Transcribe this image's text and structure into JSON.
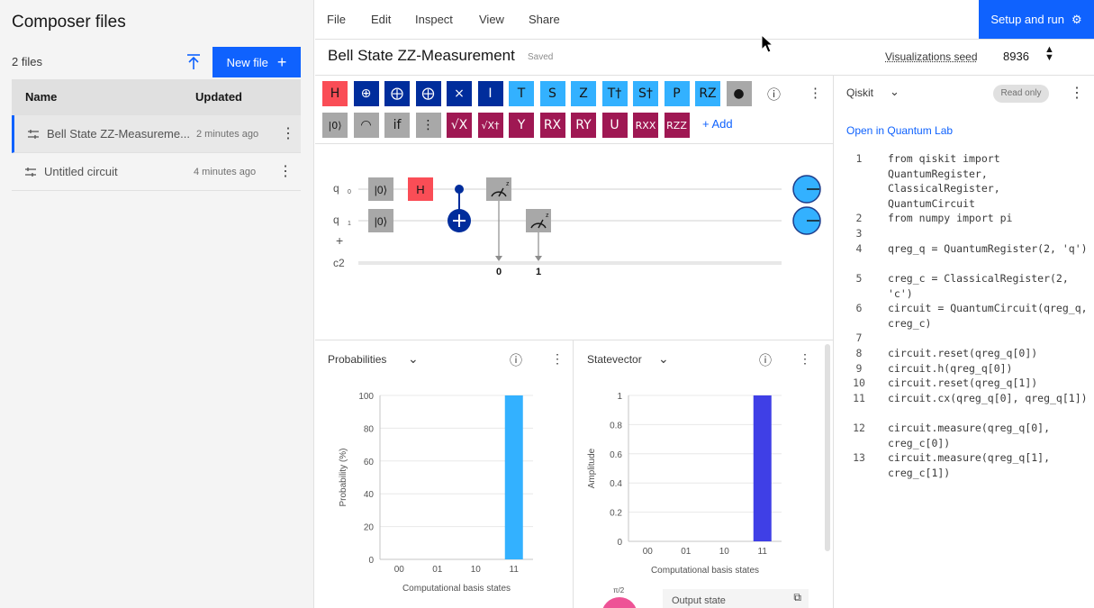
{
  "sidebar": {
    "title": "Composer files",
    "file_count": "2 files",
    "new_file_label": "New file",
    "columns": {
      "name": "Name",
      "updated": "Updated"
    },
    "files": [
      {
        "name": "Bell State ZZ-Measureme...",
        "updated": "2 minutes ago"
      },
      {
        "name": "Untitled circuit",
        "updated": "4 minutes ago"
      }
    ]
  },
  "menu": {
    "items": [
      "File",
      "Edit",
      "Inspect",
      "View",
      "Share"
    ],
    "run_label": "Setup and run"
  },
  "titlebar": {
    "circuit_name": "Bell State ZZ-Measurement",
    "save_status": "Saved",
    "seed_label": "Visualizations seed",
    "seed_value": "8936"
  },
  "palette": {
    "row1": [
      {
        "label": "H",
        "color": "#fa4d56"
      },
      {
        "label": "⊕",
        "color": "#002d9c"
      },
      {
        "label": "⨁",
        "color": "#002d9c"
      },
      {
        "label": "⨁",
        "color": "#002d9c"
      },
      {
        "label": "×",
        "color": "#002d9c"
      },
      {
        "label": "I",
        "color": "#002d9c"
      },
      {
        "label": "T",
        "color": "#33b1ff"
      },
      {
        "label": "S",
        "color": "#33b1ff"
      },
      {
        "label": "Z",
        "color": "#33b1ff"
      },
      {
        "label": "T†",
        "color": "#33b1ff"
      },
      {
        "label": "S†",
        "color": "#33b1ff"
      },
      {
        "label": "P",
        "color": "#33b1ff"
      },
      {
        "label": "RZ",
        "color": "#33b1ff"
      },
      {
        "label": "●",
        "color": "#a8a8a8"
      }
    ],
    "row2": [
      {
        "label": "|0⟩",
        "color": "#a8a8a8"
      },
      {
        "label": "◠",
        "color": "#a8a8a8"
      },
      {
        "label": "if",
        "color": "#a8a8a8"
      },
      {
        "label": "⋮",
        "color": "#a8a8a8"
      },
      {
        "label": "√X",
        "color": "#9f1853"
      },
      {
        "label": "√X†",
        "color": "#9f1853"
      },
      {
        "label": "Y",
        "color": "#9f1853"
      },
      {
        "label": "RX",
        "color": "#9f1853"
      },
      {
        "label": "RY",
        "color": "#9f1853"
      },
      {
        "label": "U",
        "color": "#9f1853"
      },
      {
        "label": "RXX",
        "color": "#9f1853"
      },
      {
        "label": "RZZ",
        "color": "#9f1853"
      }
    ],
    "add_label": "+ Add"
  },
  "circuit": {
    "q0_label": "q",
    "q0_sub": "0",
    "q1_label": "q",
    "q1_sub": "1",
    "plus": "+",
    "creg_label": "c2",
    "reset_label": "|0⟩",
    "h_label": "H",
    "meas_label": "z",
    "bit0": "0",
    "bit1": "1"
  },
  "probabilities": {
    "title": "Probabilities",
    "chart_data": {
      "type": "bar",
      "categories": [
        "00",
        "01",
        "10",
        "11"
      ],
      "values": [
        0,
        0,
        0,
        100
      ],
      "xlabel": "Computational basis states",
      "ylabel": "Probability (%)",
      "ylim": [
        0,
        100
      ],
      "yticks": [
        "0",
        "20",
        "40",
        "60",
        "80",
        "100"
      ],
      "bar_color": "#33b1ff"
    }
  },
  "statevector": {
    "title": "Statevector",
    "chart_data": {
      "type": "bar",
      "categories": [
        "00",
        "01",
        "10",
        "11"
      ],
      "values": [
        0,
        0,
        0,
        1
      ],
      "xlabel": "Computational basis states",
      "ylabel": "Amplitude",
      "ylim": [
        0,
        1
      ],
      "yticks": [
        "0",
        "0.2",
        "0.4",
        "0.6",
        "0.8",
        "1"
      ],
      "bar_color": "#3f3fe6"
    },
    "phase_label": "π/2",
    "output_label": "Output state"
  },
  "code": {
    "language": "Qiskit",
    "readonly": "Read only",
    "open_link": "Open in Quantum Lab",
    "lines": [
      {
        "n": "1",
        "t": "from qiskit import QuantumRegister, ClassicalRegister, QuantumCircuit"
      },
      {
        "n": "2",
        "t": "from numpy import pi"
      },
      {
        "n": "3",
        "t": ""
      },
      {
        "n": "4",
        "t": "qreg_q = QuantumRegister(2, 'q')"
      },
      {
        "n": "5",
        "t": "creg_c = ClassicalRegister(2, 'c')"
      },
      {
        "n": "6",
        "t": "circuit = QuantumCircuit(qreg_q, creg_c)"
      },
      {
        "n": "7",
        "t": ""
      },
      {
        "n": "8",
        "t": "circuit.reset(qreg_q[0])"
      },
      {
        "n": "9",
        "t": "circuit.h(qreg_q[0])"
      },
      {
        "n": "10",
        "t": "circuit.reset(qreg_q[1])"
      },
      {
        "n": "11",
        "t": "circuit.cx(qreg_q[0], qreg_q[1])"
      },
      {
        "n": "12",
        "t": "circuit.measure(qreg_q[0], creg_c[0])"
      },
      {
        "n": "13",
        "t": "circuit.measure(qreg_q[1], creg_c[1])"
      }
    ]
  }
}
